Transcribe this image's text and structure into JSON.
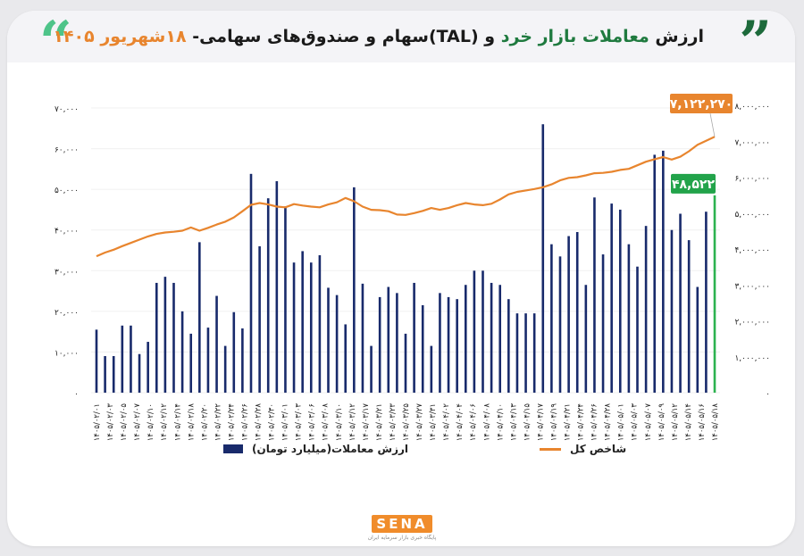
{
  "header": {
    "title_pre": "ارزش ",
    "title_green": "معاملات بازار خرد",
    "title_mid": " و (TAL)سهام و صندوق‌های سهامی- ",
    "title_orange": "۱۸شهریور ۱۴۰۵",
    "quote_left": "“",
    "quote_right": "”"
  },
  "legend": {
    "bars": "ارزش معاملات(میلیارد تومان)",
    "line": "شاخص کل"
  },
  "logo": {
    "brand": "SENA",
    "tagline": "پایگاه خبری بازار سرمایه ایران"
  },
  "callouts": {
    "line_last": "۷,۱۲۲,۲۷۰",
    "bar_last": "۴۸,۵۲۲"
  },
  "colors": {
    "bars": "#182a6b",
    "line": "#e8852e",
    "last_bar": "#2cb24f",
    "line_callout": "#e8852e",
    "bar_callout": "#22a34a"
  },
  "chart_data": {
    "type": "bar",
    "ylim": [
      0,
      70000
    ],
    "y2lim": [
      0,
      8000000
    ],
    "yticks": [
      0,
      10000,
      20000,
      30000,
      40000,
      50000,
      60000,
      70000
    ],
    "ytick_labels": [
      "۰",
      "۱۰,۰۰۰",
      "۲۰,۰۰۰",
      "۳۰,۰۰۰",
      "۴۰,۰۰۰",
      "۵۰,۰۰۰",
      "۶۰,۰۰۰",
      "۷۰,۰۰۰"
    ],
    "y2ticks": [
      0,
      1000000,
      2000000,
      3000000,
      4000000,
      5000000,
      6000000,
      7000000,
      8000000
    ],
    "y2tick_labels": [
      "۰",
      "۱,۰۰۰,۰۰۰",
      "۲,۰۰۰,۰۰۰",
      "۳,۰۰۰,۰۰۰",
      "۴,۰۰۰,۰۰۰",
      "۵,۰۰۰,۰۰۰",
      "۶,۰۰۰,۰۰۰",
      "۷,۰۰۰,۰۰۰",
      "۸,۰۰۰,۰۰۰"
    ],
    "x_tick_labels": [
      "۱۴۰۵/۰۲/۰۱",
      "۱۴۰۵/۰۲/۰۳",
      "۱۴۰۵/۰۲/۰۵",
      "۱۴۰۵/۰۲/۰۷",
      "۱۴۰۵/۰۲/۱۰",
      "۱۴۰۵/۰۲/۱۲",
      "۱۴۰۵/۰۲/۱۴",
      "۱۴۰۵/۰۲/۱۸",
      "۱۴۰۵/۰۲/۲۰",
      "۱۴۰۵/۰۲/۲۲",
      "۱۴۰۵/۰۲/۲۴",
      "۱۴۰۵/۰۲/۲۶",
      "۱۴۰۵/۰۲/۲۸",
      "۱۴۰۵/۰۲/۳۰",
      "۱۴۰۵/۰۳/۰۱",
      "۱۴۰۵/۰۳/۰۳",
      "۱۴۰۵/۰۳/۰۶",
      "۱۴۰۵/۰۳/۰۸",
      "۱۴۰۵/۰۳/۱۰",
      "۱۴۰۵/۰۳/۱۲",
      "۱۴۰۵/۰۳/۱۷",
      "۱۴۰۵/۰۳/۲۱",
      "۱۴۰۵/۰۳/۲۳",
      "۱۴۰۵/۰۳/۲۵",
      "۱۴۰۵/۰۳/۲۷",
      "۱۴۰۵/۰۳/۳۱",
      "۱۴۰۵/۰۴/۰۲",
      "۱۴۰۵/۰۴/۰۴",
      "۱۴۰۵/۰۴/۰۶",
      "۱۴۰۵/۰۴/۰۸",
      "۱۴۰۵/۰۴/۱۰",
      "۱۴۰۵/۰۴/۱۳",
      "۱۴۰۵/۰۴/۱۵",
      "۱۴۰۵/۰۴/۱۷",
      "۱۴۰۵/۰۴/۱۹",
      "۱۴۰۵/۰۴/۲۱",
      "۱۴۰۵/۰۴/۲۴",
      "۱۴۰۵/۰۴/۲۶",
      "۱۴۰۵/۰۴/۲۸",
      "۱۴۰۵/۰۵/۰۱",
      "۱۴۰۵/۰۵/۰۳",
      "۱۴۰۵/۰۵/۰۷",
      "۱۴۰۵/۰۵/۰۹",
      "۱۴۰۵/۰۵/۱۲",
      "۱۴۰۵/۰۵/۱۴",
      "۱۴۰۵/۰۵/۱۶",
      "۱۴۰۵/۰۵/۱۸"
    ],
    "bar_values": [
      15500,
      9000,
      9000,
      16500,
      16500,
      9500,
      12500,
      27000,
      28500,
      27000,
      20000,
      14500,
      37000,
      16000,
      23800,
      11500,
      19800,
      15800,
      53800,
      36000,
      47800,
      52000,
      45800,
      32000,
      34800,
      32000,
      33800,
      25800,
      24000,
      16800,
      50500,
      26800,
      11500,
      23500,
      26000,
      24500,
      14500,
      27000,
      21500,
      11500,
      24500,
      23500,
      23000,
      26500,
      30000,
      30000,
      27000,
      26500,
      23000,
      19500,
      19500,
      19500,
      66000,
      36500,
      33500,
      38500,
      39500,
      26500,
      48000,
      34000,
      46500,
      45000,
      36500,
      31000,
      41000,
      58500,
      59500,
      40000,
      44000,
      37500,
      26000,
      44500,
      48522
    ],
    "line_values": [
      3800000,
      3900000,
      3980000,
      4080000,
      4170000,
      4260000,
      4350000,
      4420000,
      4460000,
      4480000,
      4510000,
      4600000,
      4510000,
      4590000,
      4680000,
      4760000,
      4880000,
      5050000,
      5230000,
      5280000,
      5240000,
      5180000,
      5160000,
      5250000,
      5210000,
      5180000,
      5160000,
      5240000,
      5300000,
      5420000,
      5330000,
      5180000,
      5090000,
      5080000,
      5050000,
      4960000,
      4950000,
      5000000,
      5060000,
      5140000,
      5090000,
      5140000,
      5220000,
      5280000,
      5240000,
      5220000,
      5260000,
      5380000,
      5520000,
      5590000,
      5630000,
      5670000,
      5720000,
      5800000,
      5910000,
      5980000,
      6000000,
      6050000,
      6110000,
      6120000,
      6150000,
      6200000,
      6230000,
      6330000,
      6430000,
      6500000,
      6560000,
      6490000,
      6570000,
      6720000,
      6900000,
      7010000,
      7122270
    ]
  }
}
